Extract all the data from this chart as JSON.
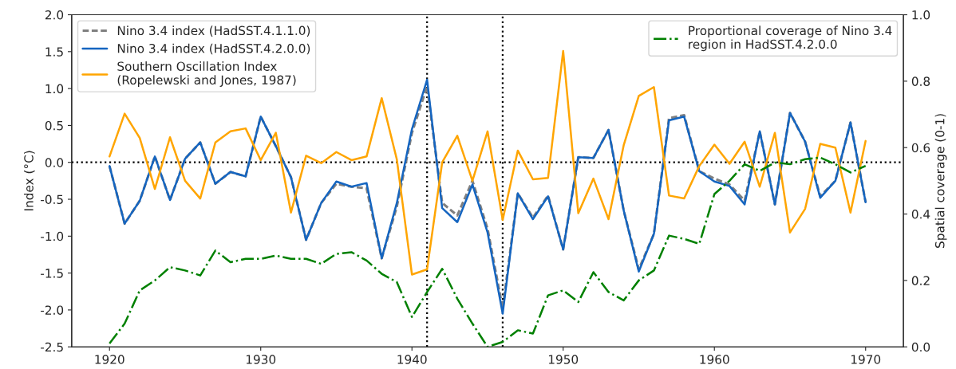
{
  "chart_data": {
    "type": "line",
    "ylabel": "Index (°C)",
    "y2label": "Spatial coverage (0-1)",
    "x": [
      1920,
      1921,
      1922,
      1923,
      1924,
      1925,
      1926,
      1927,
      1928,
      1929,
      1930,
      1931,
      1932,
      1933,
      1934,
      1935,
      1936,
      1937,
      1938,
      1939,
      1940,
      1941,
      1942,
      1943,
      1944,
      1945,
      1946,
      1947,
      1948,
      1949,
      1950,
      1951,
      1952,
      1953,
      1954,
      1955,
      1956,
      1957,
      1958,
      1959,
      1960,
      1961,
      1962,
      1963,
      1964,
      1965,
      1966,
      1967,
      1968,
      1969,
      1970
    ],
    "series": [
      {
        "name": "Nino 3.4 index (HadSST.4.1.1.0)",
        "color": "#808080",
        "line_style": "dashed",
        "values": [
          -0.05,
          -0.83,
          -0.52,
          0.08,
          -0.51,
          0.05,
          0.27,
          -0.29,
          -0.13,
          -0.19,
          0.62,
          0.22,
          -0.2,
          -1.05,
          -0.55,
          -0.29,
          -0.33,
          -0.35,
          -1.3,
          -0.6,
          0.4,
          1.03,
          -0.55,
          -0.72,
          -0.25,
          -0.9,
          -1.98,
          -0.42,
          -0.75,
          -0.45,
          -1.18,
          0.07,
          0.06,
          0.44,
          -0.65,
          -1.45,
          -0.97,
          0.6,
          0.64,
          -0.12,
          -0.22,
          -0.3,
          -0.52,
          0.42,
          -0.57,
          0.67,
          0.28,
          -0.46,
          -0.25,
          0.54,
          -0.54
        ]
      },
      {
        "name": "Nino 3.4 index (HadSST.4.2.0.0)",
        "color": "#1565c0",
        "line_style": "solid",
        "values": [
          -0.05,
          -0.83,
          -0.52,
          0.08,
          -0.51,
          0.05,
          0.27,
          -0.29,
          -0.13,
          -0.19,
          0.62,
          0.22,
          -0.2,
          -1.05,
          -0.55,
          -0.26,
          -0.33,
          -0.28,
          -1.3,
          -0.55,
          0.45,
          1.12,
          -0.62,
          -0.81,
          -0.3,
          -0.95,
          -2.05,
          -0.42,
          -0.77,
          -0.46,
          -1.18,
          0.07,
          0.06,
          0.44,
          -0.65,
          -1.48,
          -0.97,
          0.57,
          0.62,
          -0.12,
          -0.26,
          -0.32,
          -0.57,
          0.42,
          -0.57,
          0.67,
          0.28,
          -0.48,
          -0.25,
          0.54,
          -0.54
        ]
      },
      {
        "name": "Southern Oscillation Index\n(Ropelewski and Jones, 1987)",
        "color": "#ffa500",
        "line_style": "solid",
        "values": [
          0.08,
          0.66,
          0.33,
          -0.36,
          0.34,
          -0.25,
          -0.49,
          0.27,
          0.42,
          0.46,
          0.03,
          0.4,
          -0.68,
          0.09,
          -0.01,
          0.14,
          0.03,
          0.08,
          0.87,
          0.04,
          -1.52,
          -1.45,
          0.0,
          0.36,
          -0.25,
          0.42,
          -0.78,
          0.16,
          -0.23,
          -0.21,
          1.51,
          -0.69,
          -0.22,
          -0.77,
          0.23,
          0.9,
          1.02,
          -0.45,
          -0.49,
          -0.05,
          0.24,
          -0.02,
          0.28,
          -0.33,
          0.4,
          -0.95,
          -0.63,
          0.25,
          0.2,
          -0.68,
          0.29
        ]
      },
      {
        "name": "Proportional coverage of Nino 3.4\nregion in HadSST.4.2.0.0",
        "color": "#008000",
        "line_style": "dashdot",
        "axis": "y2",
        "values": [
          0.01,
          0.07,
          0.17,
          0.2,
          0.24,
          0.23,
          0.215,
          0.29,
          0.255,
          0.265,
          0.265,
          0.275,
          0.265,
          0.265,
          0.25,
          0.28,
          0.285,
          0.26,
          0.22,
          0.195,
          0.09,
          0.165,
          0.235,
          0.145,
          0.07,
          0.0,
          0.015,
          0.05,
          0.04,
          0.155,
          0.17,
          0.135,
          0.225,
          0.165,
          0.14,
          0.2,
          0.23,
          0.335,
          0.325,
          0.31,
          0.46,
          0.5,
          0.55,
          0.53,
          0.555,
          0.55,
          0.565,
          0.57,
          0.55,
          0.525,
          0.545
        ]
      }
    ],
    "xlim": [
      1917.5,
      1972.5
    ],
    "xticks": [
      1920,
      1930,
      1940,
      1950,
      1960,
      1970
    ],
    "ylim": [
      -2.5,
      2.0
    ],
    "yticks": [
      -2.5,
      {
        "value": -2,
        "label": "-2.0"
      },
      -1.5,
      {
        "value": -1,
        "label": "-1.0"
      },
      -0.5,
      {
        "value": 0,
        "label": "0.0"
      },
      0.5,
      {
        "value": 1,
        "label": "1.0"
      },
      1.5,
      {
        "value": 2,
        "label": "2.0"
      }
    ],
    "y2lim": [
      0.0,
      1.0
    ],
    "y2ticks": [
      {
        "value": 0,
        "label": "0.0"
      },
      0.2,
      0.4,
      0.6,
      0.8,
      {
        "value": 1,
        "label": "1.0"
      }
    ],
    "ref_lines": [
      {
        "axis": "y",
        "value": 0,
        "color": "#000000",
        "line_style": "dotted"
      },
      {
        "axis": "x",
        "value": 1941,
        "color": "#000000",
        "line_style": "dotted"
      },
      {
        "axis": "x",
        "value": 1946,
        "color": "#000000",
        "line_style": "dotted"
      }
    ],
    "grid": false,
    "legend": "top left",
    "marker": "none"
  }
}
